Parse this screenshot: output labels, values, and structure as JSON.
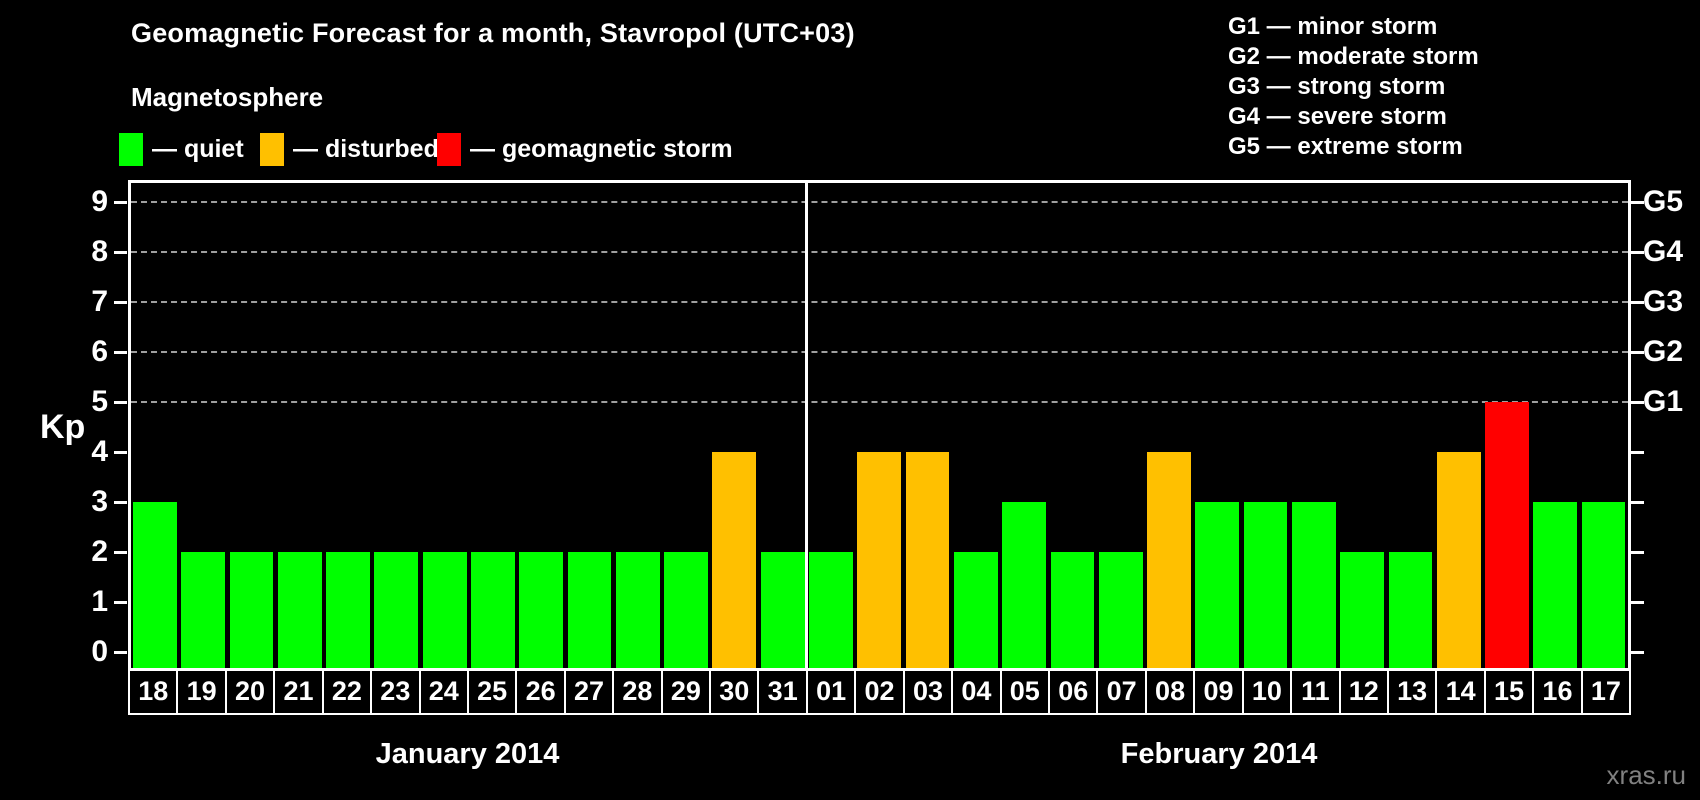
{
  "title": "Geomagnetic Forecast for a month, Stavropol (UTC+03)",
  "subtitle": "Magnetosphere",
  "legend": {
    "items": [
      {
        "label": "— quiet",
        "status": "quiet"
      },
      {
        "label": "— disturbed",
        "status": "disturbed"
      },
      {
        "label": "— geomagnetic storm",
        "status": "storm"
      }
    ]
  },
  "storm_scale": [
    "G1 — minor storm",
    "G2 — moderate storm",
    "G3 — strong storm",
    "G4 — severe storm",
    "G5 — extreme storm"
  ],
  "colors": {
    "quiet": "#00ff00",
    "disturbed": "#ffc000",
    "storm": "#ff0000",
    "axis": "#ffffff",
    "grid": "#9f9f9f",
    "background": "#000000",
    "watermark": "#818181"
  },
  "watermark": "xras.ru",
  "chart_data": {
    "type": "bar",
    "ylabel": "Kp",
    "ylim": [
      0,
      9
    ],
    "yticks": [
      0,
      1,
      2,
      3,
      4,
      5,
      6,
      7,
      8,
      9
    ],
    "gridline_levels": [
      5,
      6,
      7,
      8,
      9
    ],
    "right_axis_labels": [
      {
        "level": 5,
        "label": "G1"
      },
      {
        "level": 6,
        "label": "G2"
      },
      {
        "level": 7,
        "label": "G3"
      },
      {
        "level": 8,
        "label": "G4"
      },
      {
        "level": 9,
        "label": "G5"
      }
    ],
    "months": [
      {
        "label": "January 2014",
        "days": 14
      },
      {
        "label": "February 2014",
        "days": 17
      }
    ],
    "days": [
      {
        "date": "18",
        "kp": 3,
        "status": "quiet"
      },
      {
        "date": "19",
        "kp": 2,
        "status": "quiet"
      },
      {
        "date": "20",
        "kp": 2,
        "status": "quiet"
      },
      {
        "date": "21",
        "kp": 2,
        "status": "quiet"
      },
      {
        "date": "22",
        "kp": 2,
        "status": "quiet"
      },
      {
        "date": "23",
        "kp": 2,
        "status": "quiet"
      },
      {
        "date": "24",
        "kp": 2,
        "status": "quiet"
      },
      {
        "date": "25",
        "kp": 2,
        "status": "quiet"
      },
      {
        "date": "26",
        "kp": 2,
        "status": "quiet"
      },
      {
        "date": "27",
        "kp": 2,
        "status": "quiet"
      },
      {
        "date": "28",
        "kp": 2,
        "status": "quiet"
      },
      {
        "date": "29",
        "kp": 2,
        "status": "quiet"
      },
      {
        "date": "30",
        "kp": 4,
        "status": "disturbed"
      },
      {
        "date": "31",
        "kp": 2,
        "status": "quiet"
      },
      {
        "date": "01",
        "kp": 2,
        "status": "quiet"
      },
      {
        "date": "02",
        "kp": 4,
        "status": "disturbed"
      },
      {
        "date": "03",
        "kp": 4,
        "status": "disturbed"
      },
      {
        "date": "04",
        "kp": 2,
        "status": "quiet"
      },
      {
        "date": "05",
        "kp": 3,
        "status": "quiet"
      },
      {
        "date": "06",
        "kp": 2,
        "status": "quiet"
      },
      {
        "date": "07",
        "kp": 2,
        "status": "quiet"
      },
      {
        "date": "08",
        "kp": 4,
        "status": "disturbed"
      },
      {
        "date": "09",
        "kp": 3,
        "status": "quiet"
      },
      {
        "date": "10",
        "kp": 3,
        "status": "quiet"
      },
      {
        "date": "11",
        "kp": 3,
        "status": "quiet"
      },
      {
        "date": "12",
        "kp": 2,
        "status": "quiet"
      },
      {
        "date": "13",
        "kp": 2,
        "status": "quiet"
      },
      {
        "date": "14",
        "kp": 4,
        "status": "disturbed"
      },
      {
        "date": "15",
        "kp": 5,
        "status": "storm"
      },
      {
        "date": "16",
        "kp": 3,
        "status": "quiet"
      },
      {
        "date": "17",
        "kp": 3,
        "status": "quiet"
      }
    ]
  }
}
